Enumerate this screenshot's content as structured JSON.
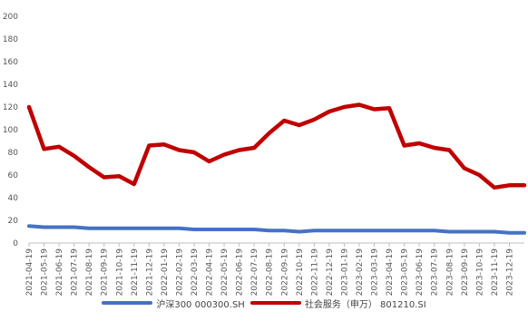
{
  "chart_data": {
    "type": "line",
    "title": "",
    "xlabel": "",
    "ylabel": "",
    "ylim": [
      0,
      200
    ],
    "yticks": [
      0,
      20,
      40,
      60,
      80,
      100,
      120,
      140,
      160,
      180,
      200
    ],
    "grid": false,
    "legend_position": "bottom",
    "x": [
      "2021-04-19",
      "2021-05-19",
      "2021-06-19",
      "2021-07-19",
      "2021-08-19",
      "2021-09-19",
      "2021-10-19",
      "2021-11-19",
      "2021-12-19",
      "2022-01-19",
      "2022-02-19",
      "2022-03-19",
      "2022-04-19",
      "2022-05-19",
      "2022-06-19",
      "2022-07-19",
      "2022-08-19",
      "2022-09-19",
      "2022-10-19",
      "2022-11-19",
      "2022-12-19",
      "2023-01-19",
      "2023-02-19",
      "2023-03-19",
      "2023-04-19",
      "2023-05-19",
      "2023-06-19",
      "2023-07-19",
      "2023-08-19",
      "2023-09-19",
      "2023-10-19",
      "2023-11-19",
      "2023-12-19",
      "2024-01-10"
    ],
    "series": [
      {
        "name": "沪深300 000300.SH",
        "color": "#4472c4",
        "values": [
          15,
          14,
          14,
          14,
          13,
          13,
          13,
          13,
          13,
          13,
          13,
          12,
          12,
          12,
          12,
          12,
          11,
          11,
          10,
          11,
          11,
          11,
          11,
          11,
          11,
          11,
          11,
          11,
          10,
          10,
          10,
          10,
          9,
          9
        ]
      },
      {
        "name": "社会服务（申万） 801210.SI",
        "color": "#c00000",
        "values": [
          120,
          83,
          85,
          77,
          67,
          58,
          59,
          52,
          86,
          87,
          82,
          80,
          72,
          78,
          82,
          84,
          97,
          108,
          104,
          109,
          116,
          120,
          122,
          118,
          119,
          86,
          88,
          84,
          82,
          66,
          60,
          49,
          51,
          51
        ]
      }
    ]
  }
}
